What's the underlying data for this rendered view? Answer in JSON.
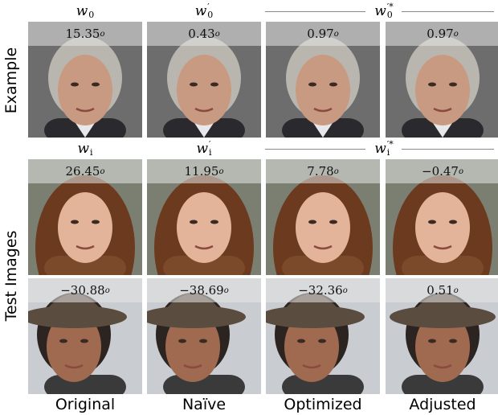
{
  "row_labels": [
    "Example",
    "Test Images"
  ],
  "column_labels": [
    "Original",
    "Naïve",
    "Optimized",
    "Adjusted"
  ],
  "degree_symbol": "o",
  "header_rows": [
    [
      {
        "base": "w",
        "sub": "0"
      },
      {
        "base": "w",
        "sup": "′",
        "sub": "0"
      },
      {
        "base": "w",
        "sup": "′*",
        "sub": "0"
      }
    ],
    [
      {
        "base": "w",
        "sub": "i"
      },
      {
        "base": "w",
        "sup": "′",
        "sub": "i"
      },
      {
        "base": "w",
        "sup": "′*",
        "sub": "i"
      }
    ]
  ],
  "angle_rows": [
    [
      "15.35",
      "0.43",
      "0.97",
      "0.97"
    ],
    [
      "26.45",
      "11.95",
      "7.78",
      "−0.47"
    ],
    [
      "−30.88",
      "−38.69",
      "−32.36",
      "0.51"
    ]
  ]
}
